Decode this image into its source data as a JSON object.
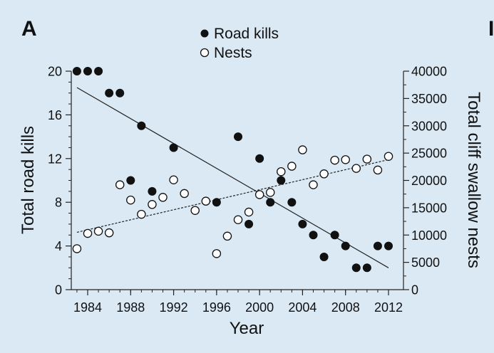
{
  "chart_data": {
    "type": "scatter",
    "panel_label": "A",
    "edge_label": "I",
    "xlabel": "Year",
    "ylabel_left": "Total road kills",
    "ylabel_right": "Total cliff swallow nests",
    "xlim": [
      1982,
      2013
    ],
    "ylim_left": [
      0,
      20
    ],
    "ylim_right": [
      0,
      40000
    ],
    "x_ticks": [
      1984,
      1988,
      1992,
      1996,
      2000,
      2004,
      2008,
      2012
    ],
    "x_ticks_minor": [
      1982,
      1983,
      1984,
      1985,
      1986,
      1987,
      1988,
      1989,
      1990,
      1991,
      1992,
      1993,
      1994,
      1995,
      1996,
      1997,
      1998,
      1999,
      2000,
      2001,
      2002,
      2003,
      2004,
      2005,
      2006,
      2007,
      2008,
      2009,
      2010,
      2011,
      2012
    ],
    "y_ticks_left": [
      0,
      4,
      8,
      12,
      16,
      20
    ],
    "y_ticks_right": [
      0,
      5000,
      10000,
      15000,
      20000,
      25000,
      30000,
      35000,
      40000
    ],
    "grid": false,
    "legend_position": "top-center",
    "series": [
      {
        "name": "Road kills",
        "axis": "left",
        "marker": "filled-circle",
        "color": "#111111",
        "points": [
          [
            1983,
            20
          ],
          [
            1984,
            20
          ],
          [
            1985,
            20
          ],
          [
            1986,
            18
          ],
          [
            1987,
            18
          ],
          [
            1988,
            10
          ],
          [
            1989,
            15
          ],
          [
            1990,
            9
          ],
          [
            1992,
            13
          ],
          [
            1996,
            8
          ],
          [
            1998,
            14
          ],
          [
            1999,
            6
          ],
          [
            2000,
            12
          ],
          [
            2001,
            8
          ],
          [
            2002,
            10
          ],
          [
            2003,
            8
          ],
          [
            2004,
            6
          ],
          [
            2005,
            5
          ],
          [
            2006,
            3
          ],
          [
            2007,
            5
          ],
          [
            2008,
            4
          ],
          [
            2009,
            2
          ],
          [
            2010,
            2
          ],
          [
            2011,
            4
          ],
          [
            2012,
            4
          ]
        ]
      },
      {
        "name": "Nests",
        "axis": "right",
        "marker": "open-circle",
        "color": "#111111",
        "points": [
          [
            1983,
            7500
          ],
          [
            1984,
            10300
          ],
          [
            1985,
            10700
          ],
          [
            1986,
            10400
          ],
          [
            1987,
            19200
          ],
          [
            1988,
            16400
          ],
          [
            1989,
            13800
          ],
          [
            1990,
            15600
          ],
          [
            1991,
            16900
          ],
          [
            1992,
            20100
          ],
          [
            1993,
            17600
          ],
          [
            1994,
            14500
          ],
          [
            1995,
            16200
          ],
          [
            1996,
            6600
          ],
          [
            1997,
            9800
          ],
          [
            1998,
            12800
          ],
          [
            1999,
            14200
          ],
          [
            2000,
            17400
          ],
          [
            2001,
            17800
          ],
          [
            2002,
            21600
          ],
          [
            2003,
            22600
          ],
          [
            2004,
            25600
          ],
          [
            2005,
            19200
          ],
          [
            2006,
            21200
          ],
          [
            2007,
            23700
          ],
          [
            2008,
            23800
          ],
          [
            2009,
            22200
          ],
          [
            2010,
            23900
          ],
          [
            2011,
            21900
          ],
          [
            2012,
            24400
          ]
        ]
      }
    ],
    "trendlines": [
      {
        "series": "Road kills",
        "axis": "left",
        "style": "solid",
        "from": [
          1983,
          18.5
        ],
        "to": [
          2012,
          2.0
        ]
      },
      {
        "series": "Nests",
        "axis": "right",
        "style": "dashed",
        "from": [
          1983,
          10500
        ],
        "to": [
          2012,
          23800
        ]
      }
    ]
  }
}
